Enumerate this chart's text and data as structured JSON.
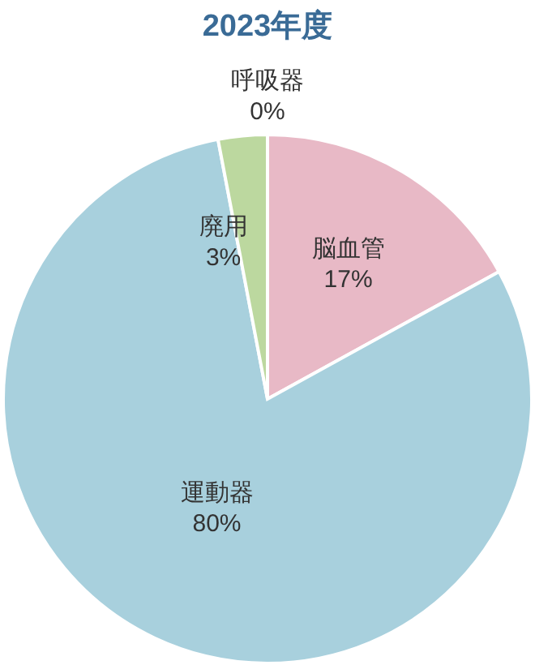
{
  "chart_data": {
    "type": "pie",
    "title": "2023年度",
    "categories": [
      "脳血管",
      "運動器",
      "廃用",
      "呼吸器"
    ],
    "values": [
      17,
      80,
      3,
      0
    ],
    "value_labels": [
      "17%",
      "80%",
      "3%",
      "0%"
    ],
    "colors": [
      "#e8b9c6",
      "#a8d0dd",
      "#bcd89f",
      null
    ]
  }
}
